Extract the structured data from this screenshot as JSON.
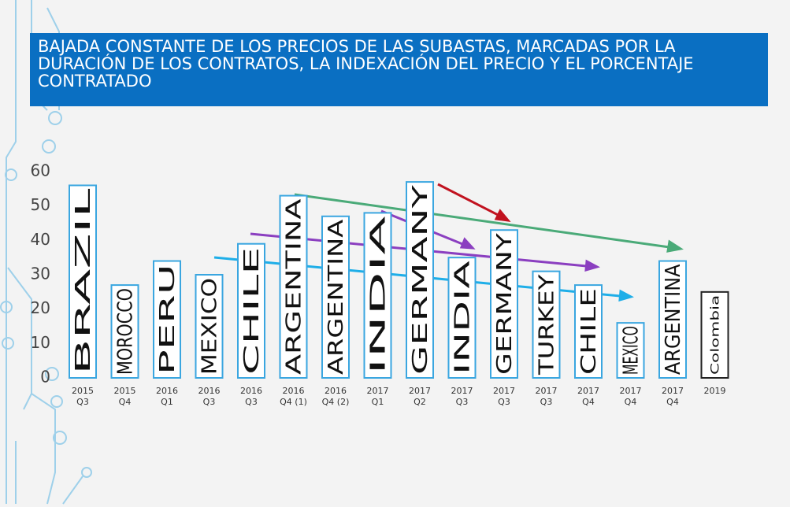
{
  "chart_data": {
    "type": "bar",
    "title": "BAJADA CONSTANTE DE LOS PRECIOS DE LAS SUBASTAS, MARCADAS POR LA DURACIÓN DE LOS CONTRATOS, LA INDEXACIÓN DEL PRECIO Y EL PORCENTAJE CONTRATADO",
    "categories": [
      "2015\nQ3",
      "2015\nQ4",
      "2016\nQ1",
      "2016\nQ3",
      "2016\nQ3",
      "2016\nQ4 (1)",
      "2016\nQ4 (2)",
      "2017\nQ1",
      "2017\nQ2",
      "2017\nQ3",
      "2017\nQ3",
      "2017\nQ3",
      "2017\nQ4",
      "2017\nQ4",
      "2017\nQ4",
      "2019"
    ],
    "bar_labels": [
      "BRAZIL",
      "MOROCCO",
      "PERU",
      "MEXICO",
      "CHILE",
      "ARGENTINA",
      "ARGENTINA",
      "INDIA",
      "GERMANY",
      "INDIA",
      "GERMANY",
      "TURKEY",
      "CHILE",
      "MEXICO",
      "ARGENTINA",
      "Colombia"
    ],
    "values": [
      56,
      27,
      34,
      30,
      39,
      53,
      47,
      48,
      57,
      35,
      43,
      31,
      27,
      16,
      34,
      25
    ],
    "bar_colors": [
      "#3aa6e0",
      "#3aa6e0",
      "#3aa6e0",
      "#3aa6e0",
      "#3aa6e0",
      "#3aa6e0",
      "#3aa6e0",
      "#3aa6e0",
      "#3aa6e0",
      "#3aa6e0",
      "#3aa6e0",
      "#3aa6e0",
      "#3aa6e0",
      "#3aa6e0",
      "#3aa6e0",
      "#222222"
    ],
    "ylim": [
      0,
      60
    ],
    "yticks": [
      0,
      10,
      20,
      30,
      40,
      50,
      60
    ],
    "grid": false
  }
}
